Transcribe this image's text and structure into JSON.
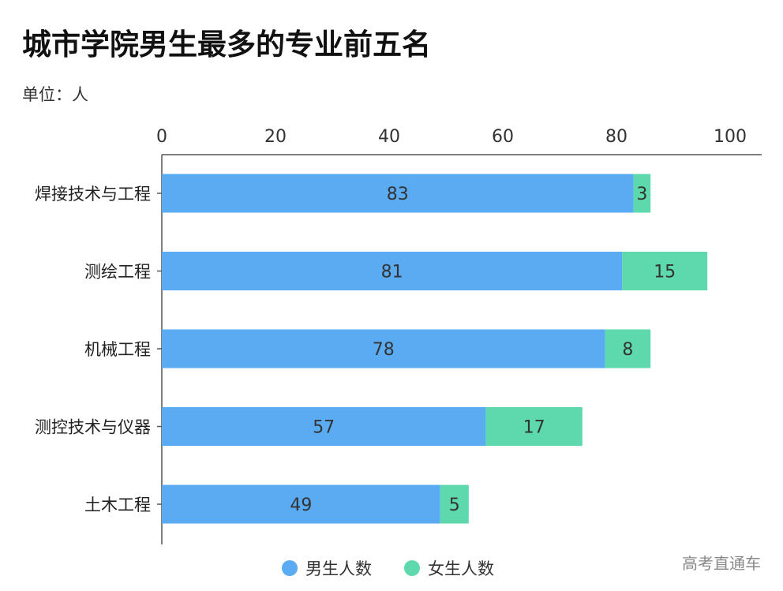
{
  "title": "城市学院男生最多的专业前五名",
  "unit_label": "单位：人",
  "watermark": "高考直通车",
  "colors": {
    "male": "#5aabf2",
    "female": "#5dd9ad",
    "axis": "#555555"
  },
  "chart_data": {
    "type": "bar",
    "orientation": "horizontal",
    "stacked": true,
    "title": "城市学院男生最多的专业前五名",
    "unit": "单位：人",
    "categories": [
      "焊接技术与工程",
      "测绘工程",
      "机械工程",
      "测控技术与仪器",
      "土木工程"
    ],
    "series": [
      {
        "name": "男生人数",
        "values": [
          83,
          81,
          78,
          57,
          49
        ]
      },
      {
        "name": "女生人数",
        "values": [
          3,
          15,
          8,
          17,
          5
        ]
      }
    ],
    "xlim": [
      0,
      100
    ],
    "xticks": [
      0,
      20,
      40,
      60,
      80,
      100
    ],
    "x_axis_position": "top",
    "grid": false,
    "legend_position": "bottom"
  }
}
